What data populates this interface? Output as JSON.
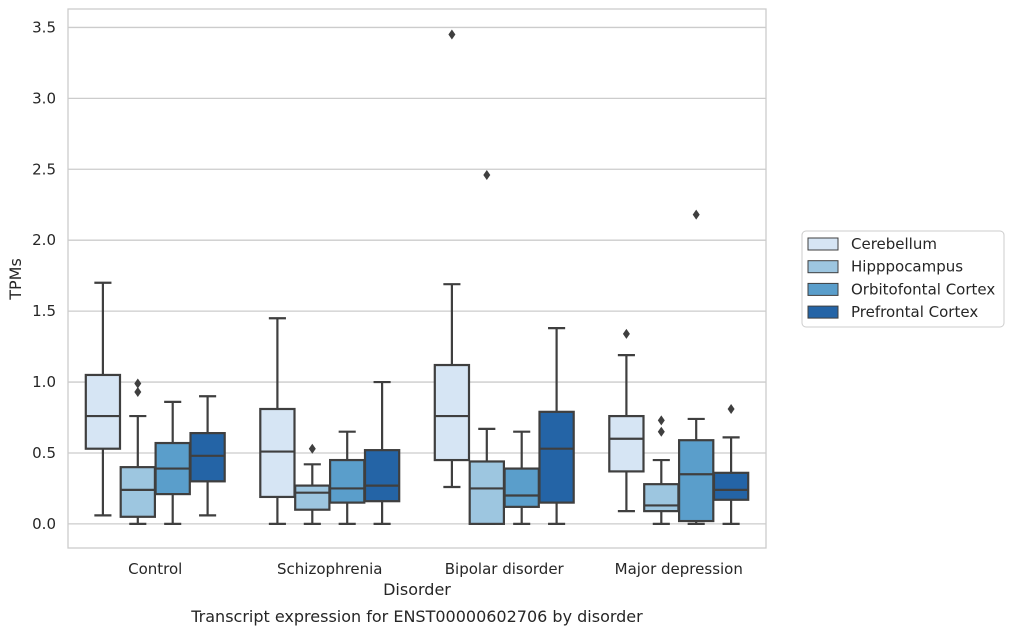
{
  "chart_data": {
    "type": "boxplot",
    "xlabel": "Disorder",
    "ylabel": "TPMs",
    "caption": "Transcript expression for ENST00000602706 by disorder",
    "ylim": [
      -0.17,
      3.63
    ],
    "yticks": [
      "0.0",
      "0.5",
      "1.0",
      "1.5",
      "2.0",
      "2.5",
      "3.0",
      "3.5"
    ],
    "grid": "horizontal",
    "legend_position": "right",
    "categories": [
      "Control",
      "Schizophrenia",
      "Bipolar disorder",
      "Major depression"
    ],
    "series": [
      {
        "name": "Cerebellum",
        "color": "#d6e5f4",
        "boxes": [
          {
            "whislo": 0.06,
            "q1": 0.53,
            "med": 0.76,
            "q3": 1.05,
            "whishi": 1.7,
            "fliers": []
          },
          {
            "whislo": 0.0,
            "q1": 0.19,
            "med": 0.51,
            "q3": 0.81,
            "whishi": 1.45,
            "fliers": []
          },
          {
            "whislo": 0.26,
            "q1": 0.45,
            "med": 0.76,
            "q3": 1.12,
            "whishi": 1.69,
            "fliers": [
              3.45
            ]
          },
          {
            "whislo": 0.09,
            "q1": 0.37,
            "med": 0.6,
            "q3": 0.76,
            "whishi": 1.19,
            "fliers": [
              1.34
            ]
          }
        ]
      },
      {
        "name": "Hipppocampus",
        "color": "#9dc6e0",
        "boxes": [
          {
            "whislo": 0.0,
            "q1": 0.05,
            "med": 0.24,
            "q3": 0.4,
            "whishi": 0.76,
            "fliers": [
              0.93,
              0.99
            ]
          },
          {
            "whislo": 0.0,
            "q1": 0.1,
            "med": 0.22,
            "q3": 0.27,
            "whishi": 0.42,
            "fliers": [
              0.53
            ]
          },
          {
            "whislo": 0.0,
            "q1": 0.0,
            "med": 0.25,
            "q3": 0.44,
            "whishi": 0.67,
            "fliers": [
              2.46
            ]
          },
          {
            "whislo": 0.0,
            "q1": 0.09,
            "med": 0.13,
            "q3": 0.28,
            "whishi": 0.45,
            "fliers": [
              0.65,
              0.73
            ]
          }
        ]
      },
      {
        "name": "Orbitofontal Cortex",
        "color": "#5a9ecb",
        "boxes": [
          {
            "whislo": 0.0,
            "q1": 0.21,
            "med": 0.39,
            "q3": 0.57,
            "whishi": 0.86,
            "fliers": []
          },
          {
            "whislo": 0.0,
            "q1": 0.15,
            "med": 0.25,
            "q3": 0.45,
            "whishi": 0.65,
            "fliers": []
          },
          {
            "whislo": 0.0,
            "q1": 0.12,
            "med": 0.2,
            "q3": 0.39,
            "whishi": 0.65,
            "fliers": []
          },
          {
            "whislo": 0.0,
            "q1": 0.02,
            "med": 0.35,
            "q3": 0.59,
            "whishi": 0.74,
            "fliers": [
              2.18
            ]
          }
        ]
      },
      {
        "name": "Prefrontal Cortex",
        "color": "#2464a6",
        "boxes": [
          {
            "whislo": 0.06,
            "q1": 0.3,
            "med": 0.48,
            "q3": 0.64,
            "whishi": 0.9,
            "fliers": []
          },
          {
            "whislo": 0.0,
            "q1": 0.16,
            "med": 0.27,
            "q3": 0.52,
            "whishi": 1.0,
            "fliers": []
          },
          {
            "whislo": 0.0,
            "q1": 0.15,
            "med": 0.53,
            "q3": 0.79,
            "whishi": 1.38,
            "fliers": []
          },
          {
            "whislo": 0.0,
            "q1": 0.17,
            "med": 0.24,
            "q3": 0.36,
            "whishi": 0.61,
            "fliers": [
              0.81
            ]
          }
        ]
      }
    ]
  }
}
